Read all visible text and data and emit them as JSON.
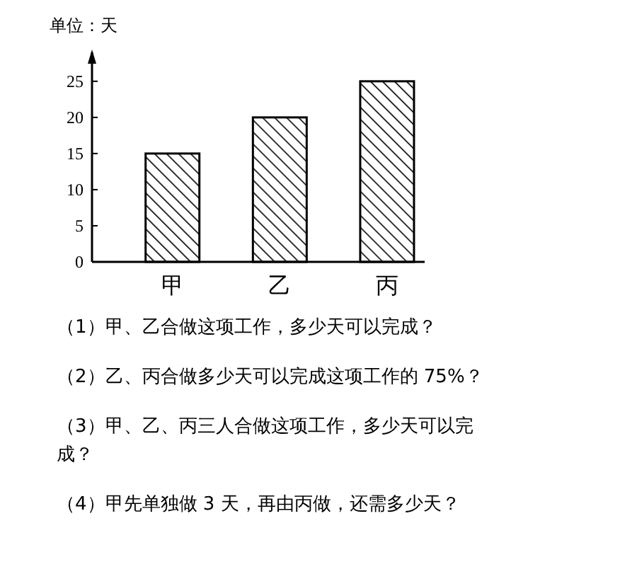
{
  "chart_data": {
    "type": "bar",
    "ylabel": "单位：天",
    "categories": [
      "甲",
      "乙",
      "丙"
    ],
    "values": [
      15,
      20,
      25
    ],
    "color": "#000000",
    "ylim": [
      0,
      29
    ],
    "yticks": [
      0,
      5,
      10,
      15,
      20,
      25
    ],
    "grid": false,
    "annotations": [
      "（1）甲、乙合做这项工作，多少天可以完成？",
      "（2）乙、丙合做多少天可以完成这项工作的 75%？",
      "（3）甲、乙、丙三人合做这项工作，多少天可以完成？",
      "（4）甲先单独做 3 天，再由丙做，还需多少天？"
    ]
  }
}
